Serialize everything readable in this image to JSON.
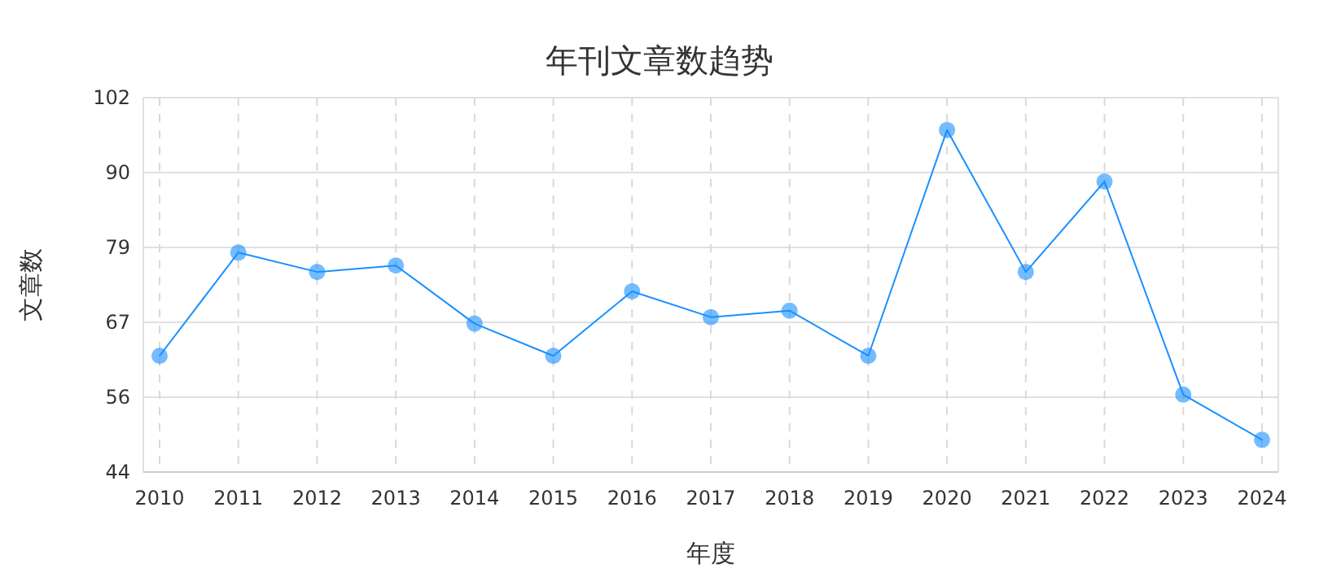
{
  "chart_data": {
    "type": "line",
    "title": "年刊文章数趋势",
    "xlabel": "年度",
    "ylabel": "文章数",
    "categories": [
      "2010",
      "2011",
      "2012",
      "2013",
      "2014",
      "2015",
      "2016",
      "2017",
      "2018",
      "2019",
      "2020",
      "2021",
      "2022",
      "2023",
      "2024"
    ],
    "series": [
      {
        "color": "#1890ff",
        "values": [
          62,
          78,
          75,
          76,
          67,
          62,
          72,
          68,
          69,
          62,
          97,
          75,
          89,
          56,
          49
        ]
      }
    ],
    "ylim": [
      44,
      102
    ],
    "yticks": [
      44,
      {
        "value": 55.6,
        "label": "56"
      },
      {
        "value": 67.2,
        "label": "67"
      },
      {
        "value": 78.8,
        "label": "79"
      },
      {
        "value": 90.4,
        "label": "90"
      },
      102
    ],
    "grid": true,
    "marker": "circle",
    "line_style": "solid"
  }
}
